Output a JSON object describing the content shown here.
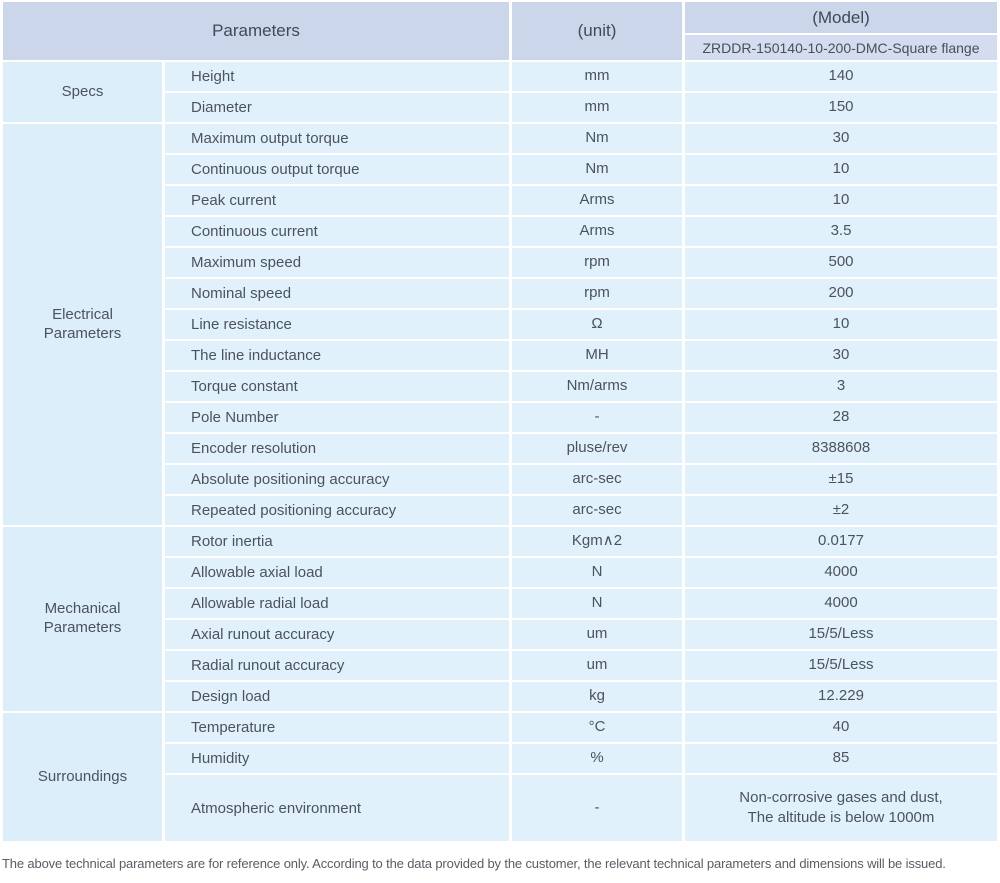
{
  "table": {
    "header": {
      "parameters_label": "Parameters",
      "unit_label": "(unit)",
      "model_label": "(Model)",
      "model_value": "ZRDDR-150140-10-200-DMC-Square flange"
    },
    "groups": [
      {
        "name": "Specs",
        "rows": [
          {
            "parameter": "Height",
            "unit": "mm",
            "value": "140"
          },
          {
            "parameter": "Diameter",
            "unit": "mm",
            "value": "150"
          }
        ]
      },
      {
        "name": "Electrical Parameters",
        "rows": [
          {
            "parameter": "Maximum output torque",
            "unit": "Nm",
            "value": "30"
          },
          {
            "parameter": "Continuous output torque",
            "unit": "Nm",
            "value": "10"
          },
          {
            "parameter": "Peak current",
            "unit": "Arms",
            "value": "10"
          },
          {
            "parameter": "Continuous current",
            "unit": "Arms",
            "value": "3.5"
          },
          {
            "parameter": "Maximum speed",
            "unit": "rpm",
            "value": "500"
          },
          {
            "parameter": "Nominal speed",
            "unit": "rpm",
            "value": "200"
          },
          {
            "parameter": "Line resistance",
            "unit": "Ω",
            "value": "10"
          },
          {
            "parameter": "The line inductance",
            "unit": "MH",
            "value": "30"
          },
          {
            "parameter": "Torque constant",
            "unit": "Nm/arms",
            "value": "3"
          },
          {
            "parameter": "Pole Number",
            "unit": "-",
            "value": "28"
          },
          {
            "parameter": "Encoder resolution",
            "unit": "pluse/rev",
            "value": "8388608"
          },
          {
            "parameter": "Absolute positioning accuracy",
            "unit": "arc-sec",
            "value": "±15"
          },
          {
            "parameter": "Repeated positioning accuracy",
            "unit": "arc-sec",
            "value": "±2"
          }
        ]
      },
      {
        "name": "Mechanical Parameters",
        "rows": [
          {
            "parameter": "Rotor inertia",
            "unit": "Kgm∧2",
            "value": "0.0177"
          },
          {
            "parameter": "Allowable axial load",
            "unit": "N",
            "value": "4000"
          },
          {
            "parameter": "Allowable radial load",
            "unit": "N",
            "value": "4000"
          },
          {
            "parameter": "Axial runout accuracy",
            "unit": "um",
            "value": "15/5/Less"
          },
          {
            "parameter": "Radial runout accuracy",
            "unit": "um",
            "value": "15/5/Less"
          },
          {
            "parameter": "Design load",
            "unit": "kg",
            "value": "12.229"
          }
        ]
      },
      {
        "name": "Surroundings",
        "rows": [
          {
            "parameter": "Temperature",
            "unit": "°C",
            "value": "40"
          },
          {
            "parameter": "Humidity",
            "unit": "%",
            "value": "85"
          },
          {
            "parameter": "Atmospheric environment",
            "unit": "-",
            "value": "Non-corrosive gases and dust,\nThe altitude is below 1000m",
            "tall": true
          }
        ]
      }
    ]
  },
  "footer": {
    "note": "The above technical parameters are for reference only. According to the data provided by the customer, the relevant technical parameters and dimensions will be issued."
  },
  "colors": {
    "header_bg": "#ccd6eb",
    "model_row_bg": "#d4ddf0",
    "cell_bg": "#e1f1fc",
    "group_cell_bg": "#dceefa",
    "gutter": "#ffffff",
    "text": "#4b535c"
  }
}
